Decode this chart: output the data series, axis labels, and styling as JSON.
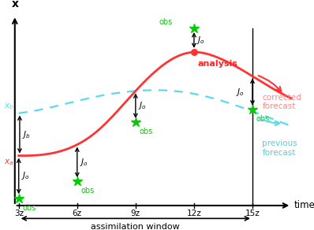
{
  "background_color": "#ffffff",
  "x_label": "time",
  "y_label": "x",
  "time_ticks": [
    "3z",
    "6z",
    "9z",
    "12z",
    "15z"
  ],
  "time_vals": [
    3,
    6,
    9,
    12,
    15
  ],
  "assimilation_label": "assimilation window",
  "red_curve_color": "#ff3333",
  "cyan_curve_color": "#55ddee",
  "green_star_color": "#00cc00",
  "analysis_label_color": "#ff2222",
  "corrected_label_color": "#ff8888",
  "previous_label_color": "#55ccdd",
  "xlim": [
    2.2,
    18.0
  ],
  "ylim": [
    -0.22,
    1.0
  ]
}
